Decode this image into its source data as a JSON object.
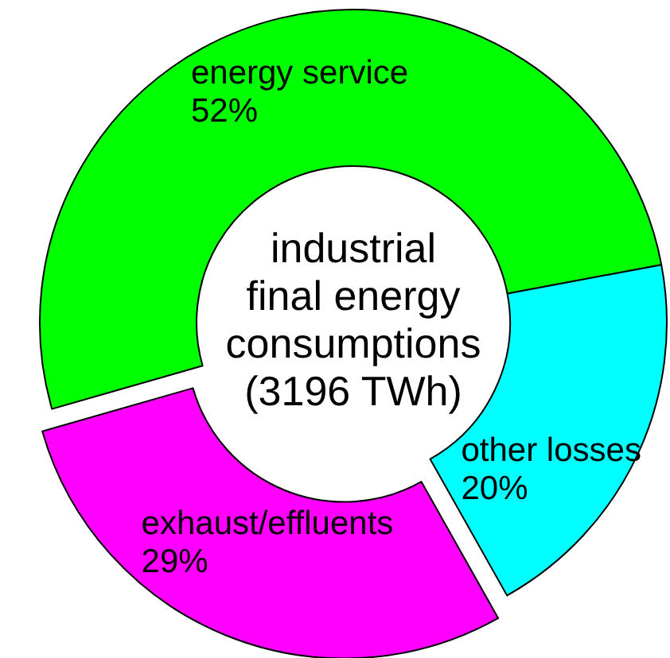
{
  "chart_data": {
    "type": "donut",
    "title": "industrial final energy consumptions (3196 TWh)",
    "categories": [
      "energy service",
      "other losses",
      "exhaust/effluents"
    ],
    "values": [
      52,
      20,
      29
    ],
    "value_labels": [
      "52%",
      "20%",
      "29%"
    ],
    "colors": [
      "#00ff00",
      "#00ffff",
      "#ff00ff"
    ]
  }
}
